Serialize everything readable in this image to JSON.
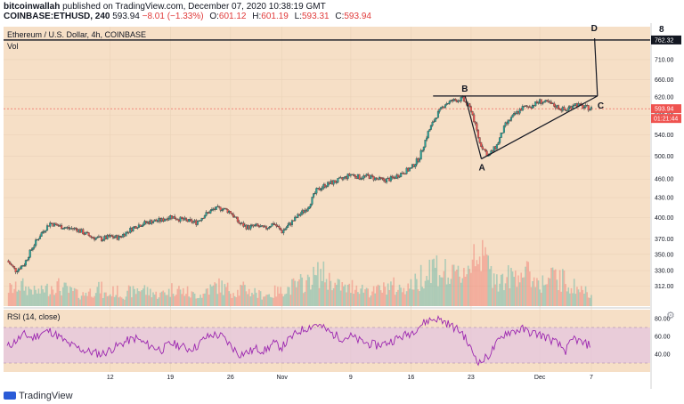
{
  "header": {
    "author": "bitcoinwallah",
    "published": "published on TradingView.com, December 07, 2020 10:38:19 GMT",
    "symbol": "COINBASE:ETHUSD, 240",
    "price": "593.94",
    "change": "−8.01 (−1.33%)",
    "o_label": "O:",
    "o": "601.12",
    "h_label": "H:",
    "h": "601.19",
    "l_label": "L:",
    "l": "593.31",
    "c_label": "C:",
    "c": "593.94"
  },
  "legend": {
    "title": "Ethereum / U.S. Dollar, 4h, COINBASE",
    "vol": "Vol",
    "rsi": "RSI (14, close)"
  },
  "scale_label": "8",
  "footer": {
    "brand": "TradingView"
  },
  "colors": {
    "background": "#f6dfc6",
    "bull": "#26a69a",
    "bear": "#ef5350",
    "rsi_line": "#9c27b0",
    "rsi_band": "#e1bfe6",
    "last_price_tag": "#ef5350",
    "level_tag": "#131722"
  },
  "chart_data": [
    {
      "type": "candlestick",
      "title": "Ethereum / U.S. Dollar, 4h, COINBASE",
      "ylim": [
        290,
        800
      ],
      "y_ticks": [
        312,
        330,
        350,
        370,
        400,
        430,
        460,
        500,
        540,
        580,
        620,
        660,
        710
      ],
      "x_ticks": [
        "12",
        "19",
        "26",
        "Nov",
        "9",
        "16",
        "23",
        "Dec",
        "7"
      ],
      "x_tick_index": [
        12,
        19,
        26,
        32,
        40,
        47,
        54,
        62,
        68
      ],
      "last_price": "593.94",
      "countdown": "01:21:44",
      "level": "762.32",
      "close_daily": [
        342,
        330,
        338,
        360,
        378,
        392,
        388,
        385,
        384,
        378,
        372,
        370,
        373,
        372,
        380,
        388,
        392,
        395,
        396,
        402,
        398,
        395,
        393,
        404,
        412,
        414,
        408,
        392,
        386,
        388,
        384,
        392,
        380,
        392,
        404,
        415,
        441,
        450,
        455,
        460,
        468,
        463,
        465,
        460,
        458,
        462,
        471,
        478,
        498,
        545,
        580,
        605,
        612,
        615,
        592,
        525,
        500,
        520,
        560,
        580,
        596,
        600,
        610,
        606,
        598,
        590,
        605,
        598,
        594
      ],
      "volume_rel": [
        0.3,
        0.35,
        0.3,
        0.25,
        0.3,
        0.35,
        0.3,
        0.25,
        0.2,
        0.25,
        0.3,
        0.2,
        0.25,
        0.2,
        0.25,
        0.3,
        0.25,
        0.2,
        0.25,
        0.3,
        0.25,
        0.2,
        0.2,
        0.3,
        0.35,
        0.3,
        0.25,
        0.3,
        0.25,
        0.2,
        0.2,
        0.25,
        0.3,
        0.35,
        0.4,
        0.5,
        0.55,
        0.45,
        0.35,
        0.3,
        0.35,
        0.3,
        0.25,
        0.3,
        0.35,
        0.3,
        0.35,
        0.4,
        0.55,
        0.7,
        0.6,
        0.5,
        0.55,
        0.65,
        1.0,
        0.8,
        0.55,
        0.45,
        0.5,
        0.6,
        0.55,
        0.45,
        0.4,
        0.5,
        0.45,
        0.35,
        0.3,
        0.25,
        0.2
      ],
      "pattern_labels": [
        "A",
        "B",
        "C",
        "D"
      ]
    },
    {
      "type": "line",
      "title": "RSI (14, close)",
      "ylim": [
        20,
        90
      ],
      "y_ticks": [
        40.0,
        60.0,
        80.0
      ],
      "band": [
        30,
        70
      ],
      "values": [
        48,
        55,
        62,
        58,
        64,
        66,
        60,
        52,
        48,
        44,
        42,
        40,
        45,
        50,
        55,
        58,
        52,
        48,
        45,
        52,
        50,
        46,
        48,
        58,
        62,
        60,
        50,
        40,
        42,
        46,
        44,
        52,
        48,
        58,
        66,
        70,
        74,
        68,
        62,
        58,
        60,
        55,
        52,
        50,
        52,
        56,
        60,
        64,
        72,
        78,
        80,
        76,
        70,
        64,
        45,
        30,
        38,
        52,
        64,
        66,
        68,
        64,
        62,
        58,
        52,
        44,
        58,
        52,
        50
      ]
    }
  ]
}
